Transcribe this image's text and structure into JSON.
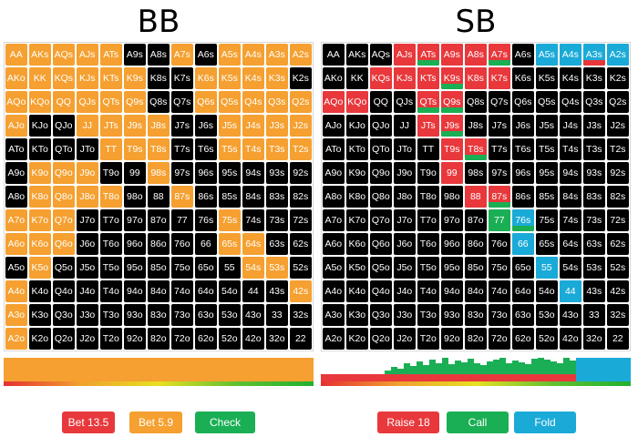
{
  "colors": {
    "bb_bet_large": "#e8383c",
    "bb_bet_small": "#f5a030",
    "bb_check": "#1aaf54",
    "sb_raise": "#e8383c",
    "sb_call": "#1aaf54",
    "sb_fold": "#1aaad8",
    "fold_cell": "#000000"
  },
  "ranks": [
    "A",
    "K",
    "Q",
    "J",
    "T",
    "9",
    "8",
    "7",
    "6",
    "5",
    "4",
    "3",
    "2"
  ],
  "bb": {
    "title": "BB",
    "buttons": [
      {
        "label": "Bet 13.5",
        "color": "#e8383c"
      },
      {
        "label": "Bet 5.9",
        "color": "#f5a030"
      },
      {
        "label": "Check",
        "color": "#1aaf54"
      }
    ],
    "grid": [
      "OOOOOBBOBOOOO",
      "OOOOOOBBOOOOB",
      "OOOOOOBBOOOOO",
      "OBBOOOOBBOOOO",
      "BBBBOOOBBOOOO",
      "BOOOBBOBBBBBB",
      "BOOOOBBOBBBBB",
      "OOOBBBBBBOBBB",
      "OOOBBBBBBOOBB",
      "BOBBBBBBBBOOB",
      "OBBBBBBBBBBBO",
      "OBBBBBBBBBBBB",
      "OBBBBBBBBBBBB"
    ]
  },
  "sb": {
    "title": "SB",
    "buttons": [
      {
        "label": "Raise 18",
        "color": "#e8383c"
      },
      {
        "label": "Call",
        "color": "#1aaf54"
      },
      {
        "label": "Fold",
        "color": "#1aaad8"
      }
    ],
    "cells": {
      "0,3": [
        "R"
      ],
      "0,4": [
        "R",
        "G"
      ],
      "0,5": [
        "R"
      ],
      "0,6": [
        "R"
      ],
      "0,7": [
        "R",
        "G"
      ],
      "0,9": [
        "C"
      ],
      "0,10": [
        "C"
      ],
      "0,11": [
        "C",
        "R"
      ],
      "0,12": [
        "C"
      ],
      "1,2": [
        "R"
      ],
      "1,3": [
        "R"
      ],
      "1,4": [
        "R"
      ],
      "1,5": [
        "R",
        "G"
      ],
      "1,6": [
        "R"
      ],
      "1,7": [
        "R"
      ],
      "2,0": [
        "R"
      ],
      "2,1": [
        "R"
      ],
      "2,4": [
        "R",
        "G"
      ],
      "2,5": [
        "R",
        "G"
      ],
      "3,4": [
        "R"
      ],
      "3,5": [
        "R",
        "G"
      ],
      "4,5": [
        "R"
      ],
      "4,6": [
        "R",
        "G"
      ],
      "5,5": [
        "R"
      ],
      "6,6": [
        "R"
      ],
      "6,7": [
        "R",
        "G"
      ],
      "7,7": [
        "G"
      ],
      "7,8": [
        "C",
        "G"
      ],
      "8,8": [
        "C"
      ],
      "9,9": [
        "C"
      ],
      "10,10": [
        "C"
      ]
    }
  }
}
